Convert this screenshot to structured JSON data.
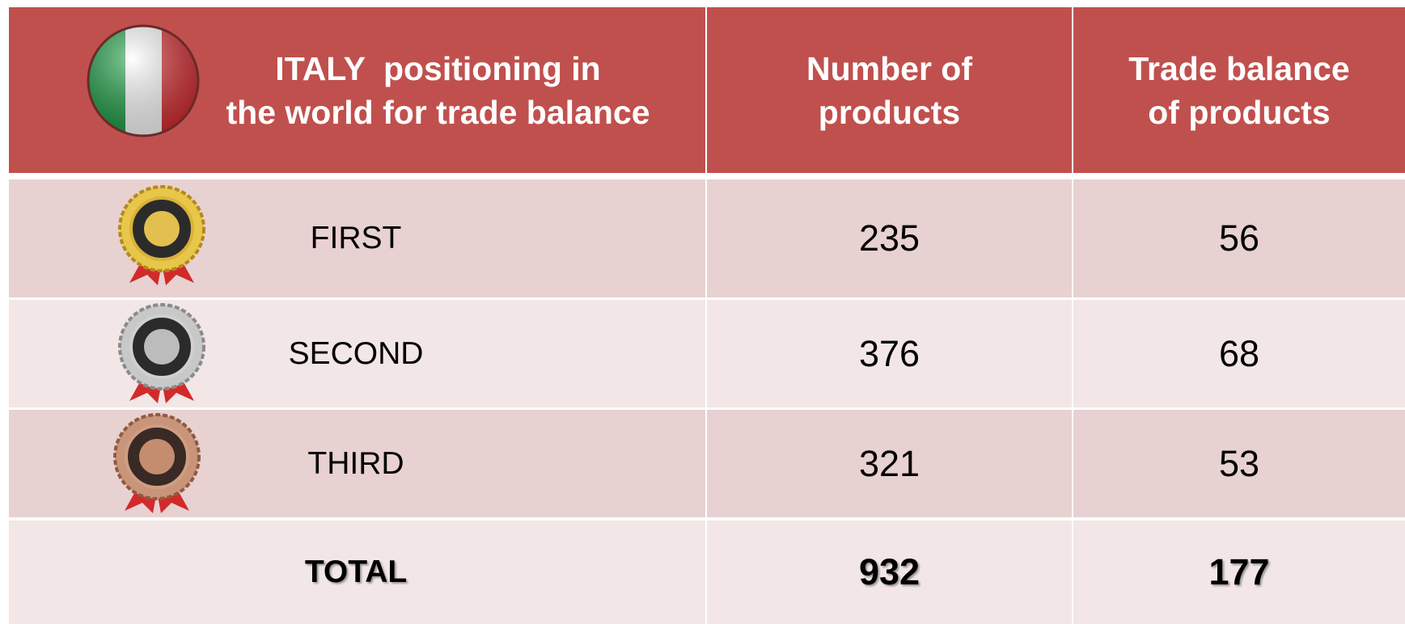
{
  "table": {
    "header": [
      [
        "ITALY  positioning in",
        "the world for trade balance"
      ],
      [
        "Number of",
        "products"
      ],
      [
        "Trade balance",
        "of products"
      ]
    ],
    "rows": [
      [
        "FIRST",
        "235",
        "56"
      ],
      [
        "SECOND",
        "376",
        "68"
      ],
      [
        "THIRD",
        "321",
        "53"
      ]
    ],
    "total": [
      "TOTAL",
      "932",
      "177"
    ]
  }
}
